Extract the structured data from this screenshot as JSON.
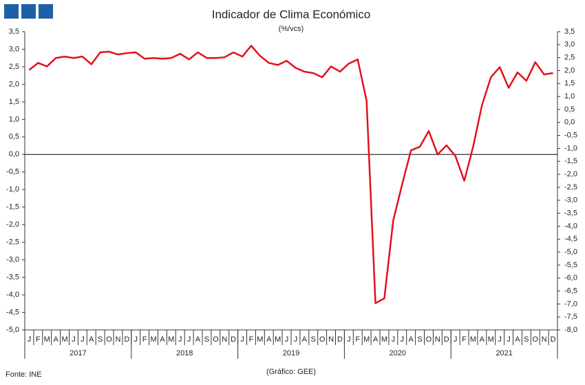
{
  "chart_data": {
    "type": "line",
    "title": "Indicador de Clima Económico",
    "subtitle": "(%/vcs)",
    "source": "Fonte: INE",
    "credit": "(Gráfico: GEE)",
    "categories": [
      "J",
      "F",
      "M",
      "A",
      "M",
      "J",
      "J",
      "A",
      "S",
      "O",
      "N",
      "D",
      "J",
      "F",
      "M",
      "A",
      "M",
      "J",
      "J",
      "A",
      "S",
      "O",
      "N",
      "D",
      "J",
      "F",
      "M",
      "A",
      "M",
      "J",
      "J",
      "A",
      "S",
      "O",
      "N",
      "D",
      "J",
      "F",
      "M",
      "A",
      "M",
      "J",
      "J",
      "A",
      "S",
      "O",
      "N",
      "D",
      "J",
      "F",
      "M",
      "A",
      "M",
      "J",
      "J",
      "A",
      "S",
      "O",
      "N",
      "D"
    ],
    "years": [
      "2017",
      "2018",
      "2019",
      "2020",
      "2021"
    ],
    "series": [
      {
        "name": "Indicador de Clima Económico",
        "color": "#e3101a",
        "values": [
          2.41,
          2.61,
          2.51,
          2.75,
          2.79,
          2.75,
          2.79,
          2.57,
          2.91,
          2.93,
          2.85,
          2.89,
          2.91,
          2.73,
          2.75,
          2.73,
          2.75,
          2.87,
          2.71,
          2.91,
          2.75,
          2.75,
          2.77,
          2.91,
          2.79,
          3.1,
          2.81,
          2.61,
          2.55,
          2.67,
          2.47,
          2.36,
          2.32,
          2.2,
          2.51,
          2.36,
          2.59,
          2.71,
          1.53,
          -4.24,
          -4.1,
          -1.88,
          -0.86,
          0.12,
          0.22,
          0.67,
          0.0,
          0.26,
          -0.04,
          -0.75,
          0.22,
          1.41,
          2.2,
          2.49,
          1.9,
          2.34,
          2.1,
          2.63,
          2.28,
          2.32
        ]
      }
    ],
    "ylim": [
      -5.0,
      3.5
    ],
    "yticks": [
      {
        "value": -5.0,
        "label": "-5,0"
      },
      {
        "value": -4.5,
        "label": "-4,5"
      },
      {
        "value": -4.0,
        "label": "-4,0"
      },
      {
        "value": -3.5,
        "label": "-3,5"
      },
      {
        "value": -3.0,
        "label": "-3,0"
      },
      {
        "value": -2.5,
        "label": "-2,5"
      },
      {
        "value": -2.0,
        "label": "-2,0"
      },
      {
        "value": -1.5,
        "label": "-1,5"
      },
      {
        "value": -1.0,
        "label": "-1,0"
      },
      {
        "value": -0.5,
        "label": "-0,5"
      },
      {
        "value": 0.0,
        "label": "0,0"
      },
      {
        "value": 0.5,
        "label": "0,5"
      },
      {
        "value": 1.0,
        "label": "1,0"
      },
      {
        "value": 1.5,
        "label": "1,5"
      },
      {
        "value": 2.0,
        "label": "2,0"
      },
      {
        "value": 2.5,
        "label": "2,5"
      },
      {
        "value": 3.0,
        "label": "3,0"
      },
      {
        "value": 3.5,
        "label": "3,5"
      }
    ],
    "y2lim": [
      -8.0,
      3.5
    ],
    "y2ticks": [
      {
        "value": -8.0,
        "label": "-8,0"
      },
      {
        "value": -7.5,
        "label": "-7,5"
      },
      {
        "value": -7.0,
        "label": "-7,0"
      },
      {
        "value": -6.5,
        "label": "-6,5"
      },
      {
        "value": -6.0,
        "label": "-6,0"
      },
      {
        "value": -5.5,
        "label": "-5,5"
      },
      {
        "value": -5.0,
        "label": "-5,0"
      },
      {
        "value": -4.5,
        "label": "-4,5"
      },
      {
        "value": -4.0,
        "label": "-4,0"
      },
      {
        "value": -3.5,
        "label": "-3,5"
      },
      {
        "value": -3.0,
        "label": "-3,0"
      },
      {
        "value": -2.5,
        "label": "-2,5"
      },
      {
        "value": -2.0,
        "label": "-2,0"
      },
      {
        "value": -1.5,
        "label": "-1,5"
      },
      {
        "value": -1.0,
        "label": "-1,0"
      },
      {
        "value": -0.5,
        "label": "-0,5"
      },
      {
        "value": 0.0,
        "label": "0,0"
      },
      {
        "value": 0.5,
        "label": "0,5"
      },
      {
        "value": 1.0,
        "label": "1,0"
      },
      {
        "value": 1.5,
        "label": "1,5"
      },
      {
        "value": 2.0,
        "label": "2,0"
      },
      {
        "value": 2.5,
        "label": "2,5"
      },
      {
        "value": 3.0,
        "label": "3,0"
      },
      {
        "value": 3.5,
        "label": "3,5"
      }
    ],
    "grid": false
  }
}
